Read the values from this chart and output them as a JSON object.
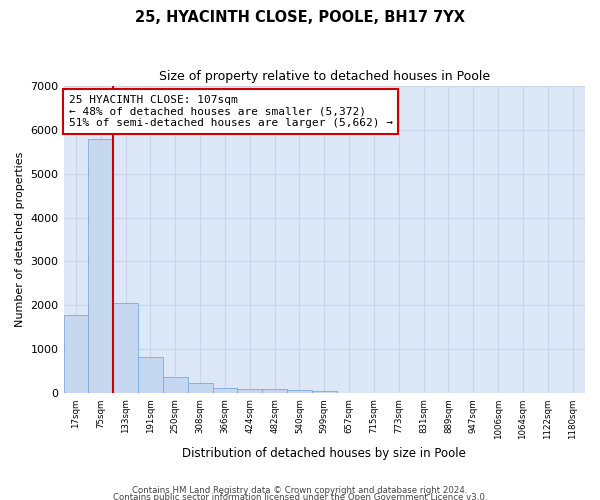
{
  "title": "25, HYACINTH CLOSE, POOLE, BH17 7YX",
  "subtitle": "Size of property relative to detached houses in Poole",
  "xlabel": "Distribution of detached houses by size in Poole",
  "ylabel": "Number of detached properties",
  "categories": [
    "17sqm",
    "75sqm",
    "133sqm",
    "191sqm",
    "250sqm",
    "308sqm",
    "366sqm",
    "424sqm",
    "482sqm",
    "540sqm",
    "599sqm",
    "657sqm",
    "715sqm",
    "773sqm",
    "831sqm",
    "889sqm",
    "947sqm",
    "1006sqm",
    "1064sqm",
    "1122sqm",
    "1180sqm"
  ],
  "values": [
    1780,
    5780,
    2050,
    820,
    370,
    230,
    120,
    110,
    95,
    75,
    65,
    0,
    0,
    0,
    0,
    0,
    0,
    0,
    0,
    0,
    0
  ],
  "bar_color": "#c5d8f0",
  "bar_edge_color": "#7aaadc",
  "vline_x_index": 1.5,
  "vline_color": "#cc0000",
  "annotation_text": "25 HYACINTH CLOSE: 107sqm\n← 48% of detached houses are smaller (5,372)\n51% of semi-detached houses are larger (5,662) →",
  "annotation_box_color": "#cc0000",
  "ylim": [
    0,
    7000
  ],
  "yticks": [
    0,
    1000,
    2000,
    3000,
    4000,
    5000,
    6000,
    7000
  ],
  "grid_color": "#c8d4e8",
  "bg_color": "#dce8f8",
  "footer1": "Contains HM Land Registry data © Crown copyright and database right 2024.",
  "footer2": "Contains public sector information licensed under the Open Government Licence v3.0."
}
